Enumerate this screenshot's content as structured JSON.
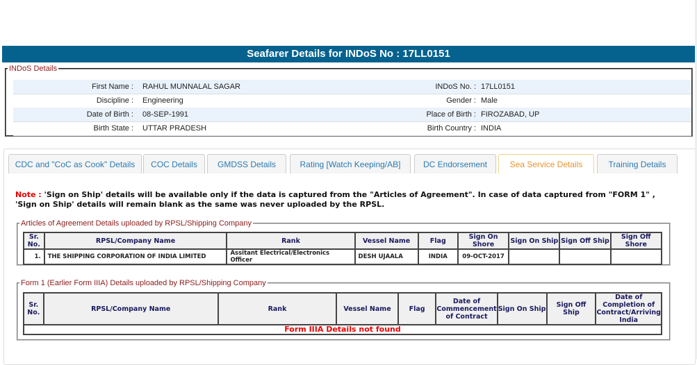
{
  "title": "Seafarer Details for INDoS No : 17LL0151",
  "indos": {
    "legend": "INDoS Details",
    "rows": [
      [
        {
          "label": "First Name :",
          "value": "RAHUL MUNNALAL SAGAR"
        },
        {
          "label": "INDoS No. :",
          "value": "17LL0151"
        }
      ],
      [
        {
          "label": "Discipline :",
          "value": "Engineering"
        },
        {
          "label": "Gender :",
          "value": "Male"
        }
      ],
      [
        {
          "label": "Date of Birth :",
          "value": "08-SEP-1991"
        },
        {
          "label": "Place of Birth :",
          "value": "FIROZABAD, UP"
        }
      ],
      [
        {
          "label": "Birth State :",
          "value": "UTTAR PRADESH"
        },
        {
          "label": "Birth Country :",
          "value": "INDIA"
        }
      ]
    ]
  },
  "tabs": [
    {
      "label": "CDC and \"CoC as Cook\" Details"
    },
    {
      "label": "COC Details"
    },
    {
      "label": "GMDSS Details"
    },
    {
      "label": "Rating [Watch Keeping/AB]"
    },
    {
      "label": "DC Endorsement"
    },
    {
      "label": "Sea Service Details",
      "active": true
    },
    {
      "label": "Training Details"
    }
  ],
  "note": {
    "prefix": "Note :",
    "text": " 'Sign on Ship' details will be available only if the data is captured from the \"Articles of Agreement\". In case of data captured from \"FORM 1\" , 'Sign on Ship' details will remain blank as the same was never uploaded by the RPSL."
  },
  "aoa": {
    "legend": "Articles of Agreement Details uploaded by RPSL/Shipping Company",
    "headers": [
      "Sr. No.",
      "RPSL/Company Name",
      "Rank",
      "Vessel Name",
      "Flag",
      "Sign On Shore",
      "Sign On Ship",
      "Sign Off Ship",
      "Sign Off Shore"
    ],
    "rows": [
      [
        "1.",
        "THE SHIPPING CORPORATION OF INDIA LIMITED",
        "Assitant Electrical/Electronics Officer",
        "DESH UJAALA",
        "INDIA",
        "09-OCT-2017",
        "",
        "",
        ""
      ]
    ]
  },
  "form1": {
    "legend": "Form 1 (Earlier Form IIIA) Details uploaded by RPSL/Shipping Company",
    "headers": [
      "Sr. No.",
      "RPSL/Company Name",
      "Rank",
      "Vessel Name",
      "Flag",
      "Date of Commencement of Contract",
      "Sign On Ship",
      "Sign Off Ship",
      "Date of Completion of Contract/Arriving India"
    ],
    "empty": "Form IIIA Details not found"
  },
  "colors": {
    "titlebar": "#05628f",
    "tab_text": "#2a7ab0",
    "tab_active": "#e6932e",
    "legend": "#8b1a1a",
    "alert": "#ee0000"
  }
}
